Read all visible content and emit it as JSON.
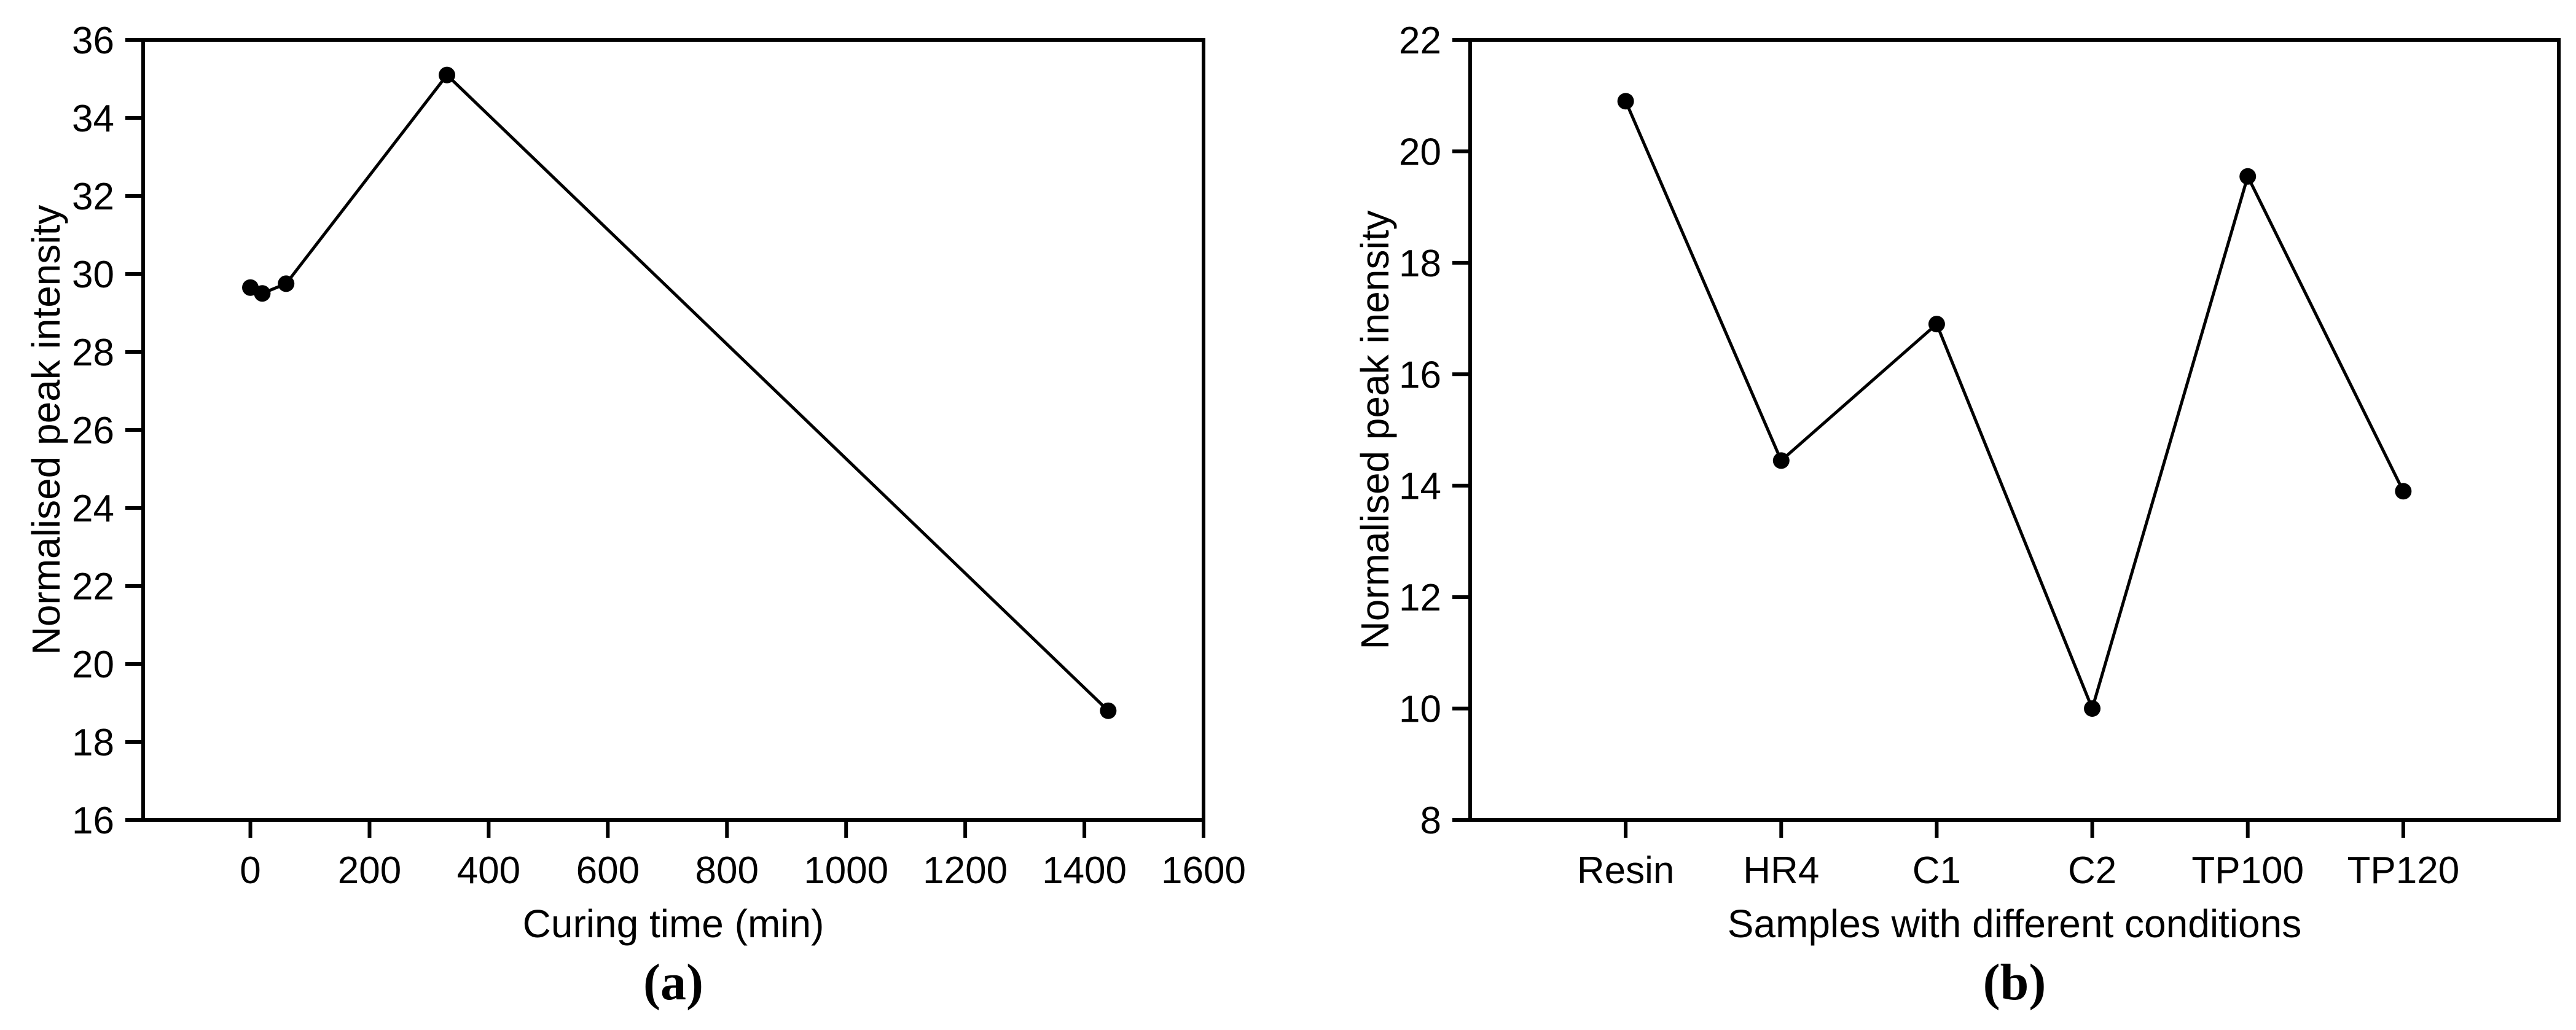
{
  "figure": {
    "background": "#ffffff",
    "ink_color": "#000000"
  },
  "chart_data": [
    {
      "id": "a",
      "type": "line",
      "title": "",
      "xlabel": "Curing time (min)",
      "ylabel": "Normalised peak intensity",
      "caption": "(a)",
      "x": [
        0,
        20,
        60,
        330,
        1440
      ],
      "y": [
        29.65,
        29.5,
        29.75,
        35.1,
        18.8
      ],
      "xlim": [
        -180,
        1600
      ],
      "ylim": [
        16,
        36
      ],
      "xticks": [
        0,
        200,
        400,
        600,
        800,
        1000,
        1200,
        1400,
        1600
      ],
      "yticks": [
        16,
        18,
        20,
        22,
        24,
        26,
        28,
        30,
        32,
        34,
        36
      ],
      "marker": "filled-circle",
      "marker_color": "#000000",
      "line_color": "#000000",
      "grid": false,
      "legend": null
    },
    {
      "id": "b",
      "type": "line",
      "title": "",
      "xlabel": "Samples with different conditions",
      "ylabel": "Normalised peak inensity",
      "caption": "(b)",
      "categories": [
        "Resin",
        "HR4",
        "C1",
        "C2",
        "TP100",
        "TP120"
      ],
      "values": [
        20.9,
        14.45,
        16.9,
        10.0,
        19.55,
        13.9
      ],
      "ylim": [
        8,
        22
      ],
      "yticks": [
        8,
        10,
        12,
        14,
        16,
        18,
        20,
        22
      ],
      "marker": "filled-circle",
      "marker_color": "#000000",
      "line_color": "#000000",
      "grid": false,
      "legend": null
    }
  ]
}
